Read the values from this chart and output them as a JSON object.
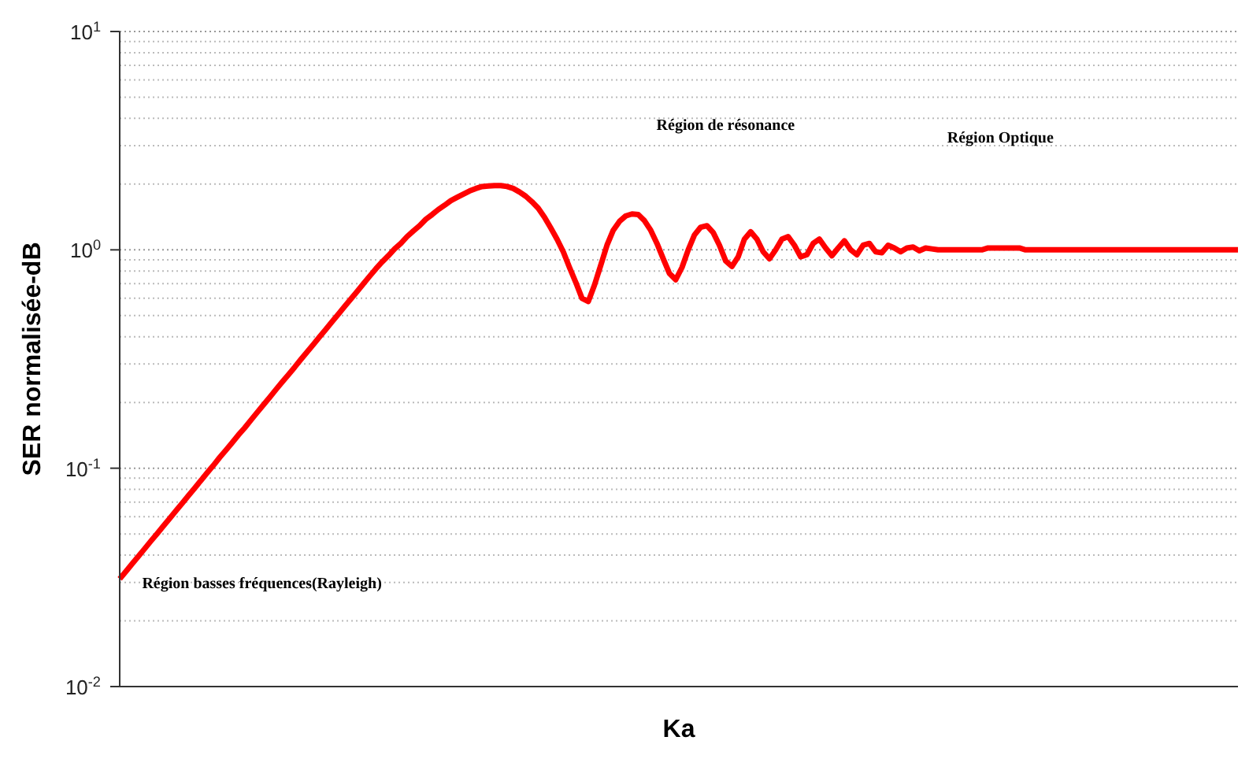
{
  "chart_data": {
    "type": "line",
    "xlabel": "Ka",
    "ylabel": "SER normalisée-dB",
    "log": "y",
    "grid": "y",
    "marker": "none",
    "line_style": "solid",
    "categories": [
      null,
      null,
      null,
      null,
      null,
      null,
      null,
      null,
      null,
      null,
      null,
      null,
      null,
      null,
      null,
      null,
      null,
      null,
      null,
      null,
      null,
      null,
      null,
      null,
      null,
      null,
      null,
      null,
      null,
      null,
      null,
      null,
      null,
      null,
      null,
      null,
      null,
      null,
      null,
      null,
      null,
      null,
      null,
      null,
      null,
      null,
      null,
      null,
      null,
      null,
      null,
      null,
      null,
      null,
      null,
      null,
      null,
      null,
      null,
      null,
      null,
      null,
      null,
      null,
      null,
      null,
      null,
      null,
      null,
      null,
      null,
      null,
      null,
      null,
      null,
      null,
      null,
      null,
      null,
      null,
      null,
      null,
      null,
      null,
      null,
      null,
      null,
      null,
      null,
      null,
      null,
      null,
      null,
      null,
      null,
      null,
      null,
      null,
      null,
      null,
      null,
      null,
      null,
      null,
      null,
      null,
      null,
      null,
      null,
      null,
      null,
      null,
      null,
      null,
      null,
      null,
      null,
      null,
      null,
      null,
      null,
      null,
      null,
      null,
      null,
      null,
      null,
      null,
      null,
      null,
      null,
      null,
      null,
      null,
      null,
      null,
      null,
      null,
      null,
      null,
      null,
      null,
      null,
      null,
      null,
      null,
      null,
      null,
      null,
      null,
      null,
      null,
      null,
      null,
      null,
      null,
      null,
      null,
      null,
      null,
      null,
      null,
      null,
      null,
      null,
      null,
      null,
      null,
      null,
      null,
      null,
      null,
      null,
      null,
      null,
      null,
      null,
      null,
      null,
      null
    ],
    "series": [
      {
        "color": "#ff0000",
        "values": [
          0.0311,
          0.0337,
          0.0365,
          0.0395,
          0.0428,
          0.0464,
          0.0502,
          0.0544,
          0.0589,
          0.0638,
          0.0691,
          0.0749,
          0.0811,
          0.0879,
          0.0952,
          0.103,
          0.112,
          0.121,
          0.131,
          0.142,
          0.153,
          0.166,
          0.18,
          0.195,
          0.211,
          0.229,
          0.248,
          0.268,
          0.29,
          0.315,
          0.341,
          0.369,
          0.4,
          0.433,
          0.469,
          0.508,
          0.55,
          0.596,
          0.645,
          0.699,
          0.757,
          0.819,
          0.88,
          0.94,
          1.01,
          1.07,
          1.15,
          1.22,
          1.29,
          1.38,
          1.45,
          1.53,
          1.6,
          1.68,
          1.74,
          1.8,
          1.86,
          1.91,
          1.95,
          1.96,
          1.97,
          1.97,
          1.95,
          1.91,
          1.84,
          1.76,
          1.66,
          1.55,
          1.41,
          1.26,
          1.12,
          0.98,
          0.83,
          0.71,
          0.6,
          0.58,
          0.69,
          0.85,
          1.05,
          1.23,
          1.35,
          1.43,
          1.46,
          1.45,
          1.36,
          1.23,
          1.07,
          0.91,
          0.78,
          0.73,
          0.83,
          1.0,
          1.17,
          1.27,
          1.29,
          1.2,
          1.05,
          0.89,
          0.84,
          0.93,
          1.12,
          1.21,
          1.12,
          0.98,
          0.91,
          1.0,
          1.12,
          1.15,
          1.05,
          0.93,
          0.95,
          1.07,
          1.12,
          1.02,
          0.94,
          1.02,
          1.1,
          1.0,
          0.95,
          1.05,
          1.07,
          0.98,
          0.97,
          1.05,
          1.02,
          0.98,
          1.02,
          1.03,
          0.99,
          1.02,
          1.01,
          1.0,
          1.0,
          1.0,
          1.0,
          1.0,
          1.0,
          1.0,
          1.0,
          1.02,
          1.02,
          1.02,
          1.02,
          1.02,
          1.02,
          1.0,
          1.0,
          1.0,
          1.0,
          1.0,
          1.0,
          1.0,
          1.0,
          1.0,
          1.0,
          1.0,
          1.0,
          1.0,
          1.0,
          1.0,
          1.0,
          1.0,
          1.0,
          1.0,
          1.0,
          1.0,
          1.0,
          1.0,
          1.0,
          1.0,
          1.0,
          1.0,
          1.0,
          1.0,
          1.0,
          1.0,
          1.0,
          1.0,
          1.0,
          1.0
        ]
      }
    ],
    "ylim": [
      0.01,
      10
    ],
    "yticks": [
      {
        "value": 0.01,
        "label": "10$^{-2}$"
      },
      {
        "value": 0.1,
        "label": "10$^{-1}$"
      },
      {
        "value": 1,
        "label": "10$^{0}$"
      },
      {
        "value": 10,
        "label": "10$^{1}$"
      }
    ],
    "annotations": [
      "Région de résonance",
      "Région Optique",
      "Région basses fréquences(Rayleigh)"
    ]
  }
}
